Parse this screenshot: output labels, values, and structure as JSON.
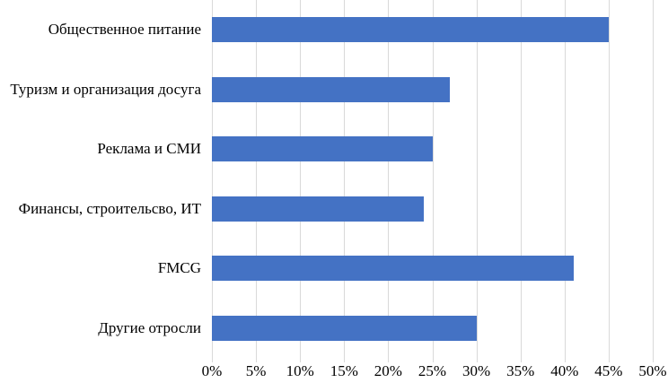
{
  "chart_data": {
    "type": "bar",
    "orientation": "horizontal",
    "title": "",
    "categories": [
      "Общественное питание",
      "Туризм и организация досуга",
      "Реклама и СМИ",
      "Финансы, строительсво, ИТ",
      "FMCG",
      "Другие отросли"
    ],
    "values": [
      45,
      27,
      25,
      24,
      41,
      30
    ],
    "unit": "%",
    "xlim": [
      0,
      50
    ],
    "x_tick_values": [
      0,
      5,
      10,
      15,
      20,
      25,
      30,
      35,
      40,
      45,
      50
    ],
    "x_ticks": [
      "0%",
      "5%",
      "10%",
      "15%",
      "20%",
      "25%",
      "30%",
      "35%",
      "40%",
      "45%",
      "50%"
    ],
    "grid": true,
    "legend": false,
    "colors": {
      "bar": "#4472C4",
      "gridline": "#d9d9d9",
      "text": "#000000",
      "background": "#ffffff"
    }
  }
}
